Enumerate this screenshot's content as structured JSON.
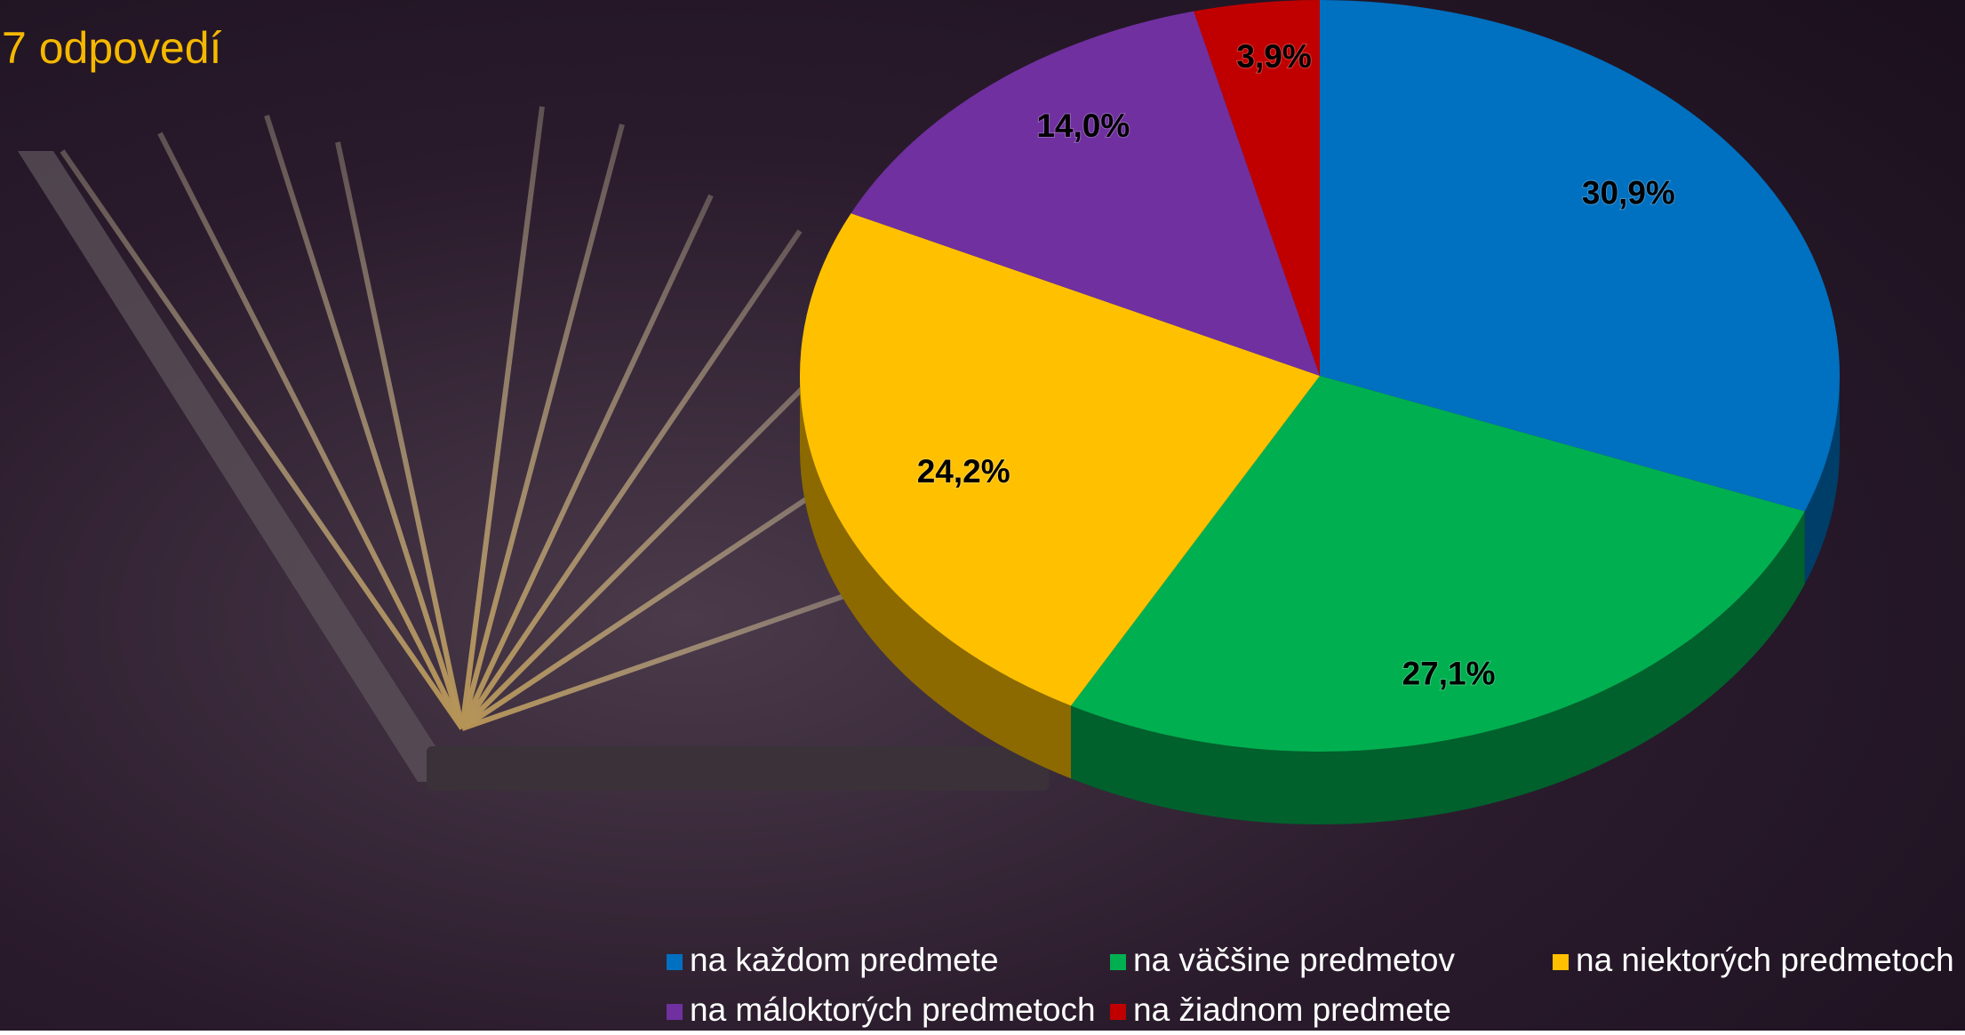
{
  "chart_data": {
    "type": "pie3d",
    "title": "7 odpovedí",
    "categories": [
      "na každom predmete",
      "na väčšine predmetov",
      "na niektorých predmetoch",
      "na máloktorých predmetoch",
      "na žiadnom predmete"
    ],
    "values": [
      30.9,
      27.1,
      24.2,
      14.0,
      3.9
    ],
    "value_labels": [
      "30,9%",
      "27,1%",
      "24,2%",
      "14,0%",
      "3,9%"
    ],
    "colors": [
      "#0070c0",
      "#00b050",
      "#ffc000",
      "#7030a0",
      "#c00000"
    ]
  }
}
